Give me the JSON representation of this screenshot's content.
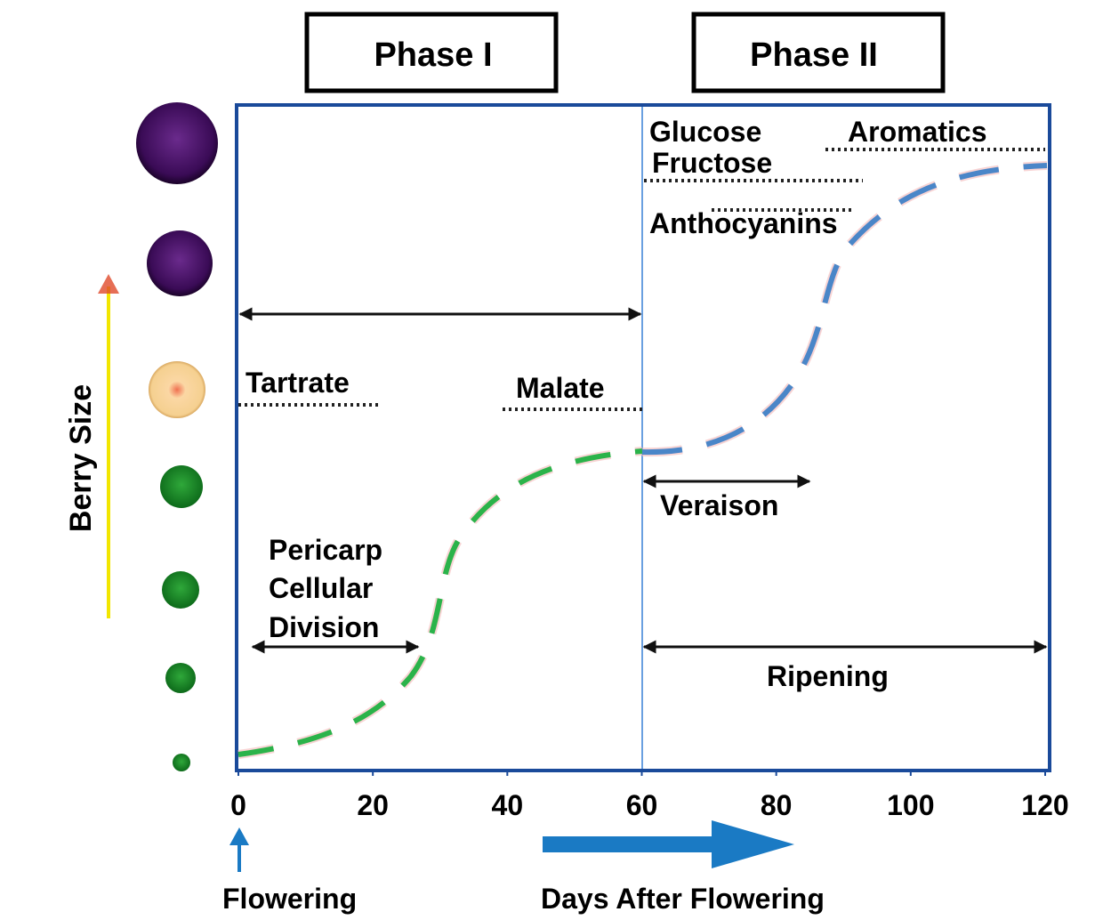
{
  "phases": [
    "Phase I",
    "Phase II"
  ],
  "y_axis_label": "Berry Size",
  "x_axis": {
    "label": "Days After Flowering",
    "lim": [
      0,
      120
    ],
    "ticks": [
      0,
      20,
      40,
      60,
      80,
      100,
      120
    ]
  },
  "start_label": "Flowering",
  "labels": {
    "tartrate": "Tartrate",
    "malate": "Malate",
    "glucose": "Glucose",
    "fructose": "Fructose",
    "aromatics": "Aromatics",
    "anthocyanins": "Anthocyanins",
    "veraison": "Veraison",
    "ripening": "Ripening",
    "pericarp": [
      "Pericarp",
      "Cellular",
      "Division"
    ]
  }
}
